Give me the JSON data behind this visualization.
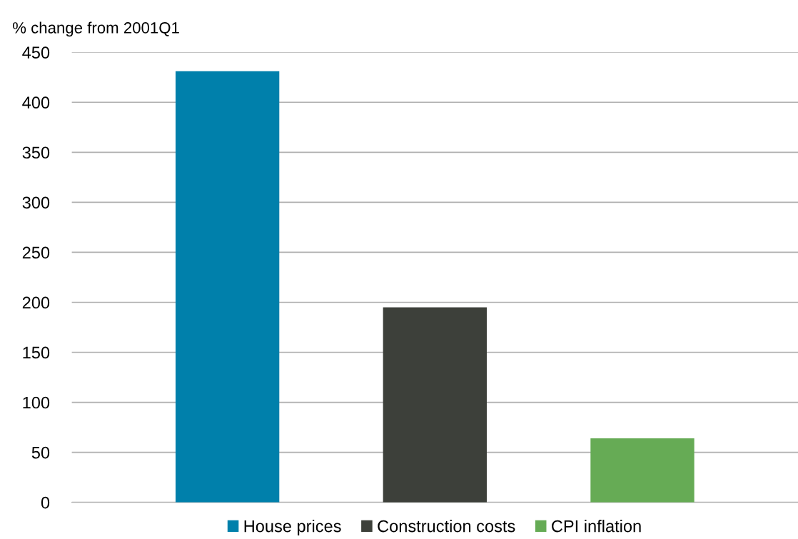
{
  "chart_data": {
    "type": "bar",
    "ylabel": "% change from 2001Q1",
    "categories": [
      null,
      null,
      null
    ],
    "series": [
      {
        "name": "House prices",
        "color": "#0080ab",
        "values": [
          431,
          null,
          null
        ]
      },
      {
        "name": "Construction costs",
        "color": "#3d403a",
        "values": [
          null,
          195,
          null
        ]
      },
      {
        "name": "CPI inflation",
        "color": "#66ab55",
        "values": [
          null,
          null,
          64
        ]
      }
    ],
    "ylim": [
      0,
      450
    ],
    "yticks": [
      0,
      50,
      100,
      150,
      200,
      250,
      300,
      350,
      400,
      450
    ],
    "grid": "y",
    "legend": "bottom"
  }
}
